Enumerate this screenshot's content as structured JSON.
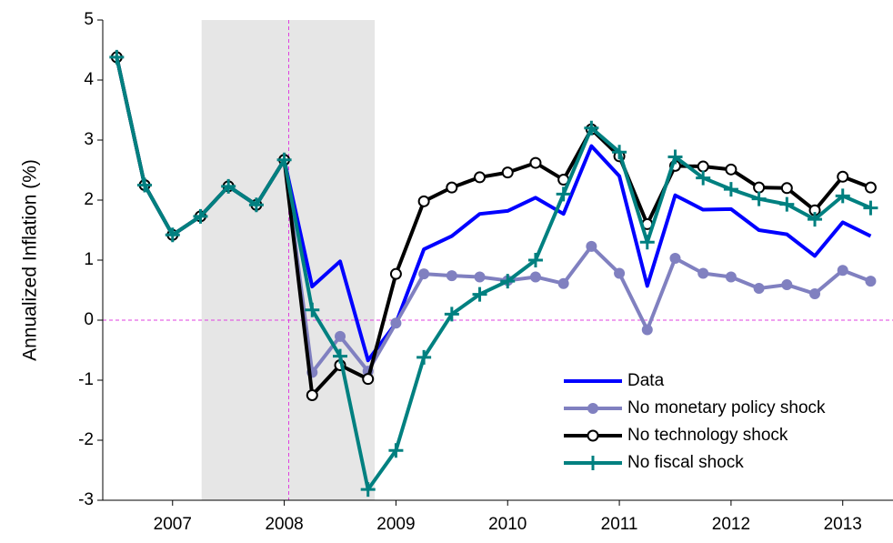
{
  "chart_data": {
    "type": "line",
    "y_label": "Annualized Inflation (%)",
    "x": [
      2006.5,
      2006.75,
      2007,
      2007.25,
      2007.5,
      2007.75,
      2008,
      2008.25,
      2008.5,
      2008.75,
      2009,
      2009.25,
      2009.5,
      2009.75,
      2010,
      2010.25,
      2010.5,
      2010.75,
      2011,
      2011.25,
      2011.5,
      2011.75,
      2012,
      2012.25,
      2012.5,
      2012.75,
      2013,
      2013.25
    ],
    "xlim": [
      2006.375,
      2013.45
    ],
    "xticks": [
      2007,
      2008,
      2009,
      2010,
      2011,
      2012,
      2013
    ],
    "ylim": [
      -3,
      5
    ],
    "yticks": [
      -3,
      -2,
      -1,
      0,
      1,
      2,
      3,
      4,
      5
    ],
    "shade": [
      2007.26,
      2008.81
    ],
    "vline": 2008.04,
    "hline": 0,
    "legend": "lower-right",
    "series": [
      {
        "name": "Data",
        "color": "#0000ff",
        "marker": "none",
        "values": [
          4.38,
          2.25,
          1.42,
          1.73,
          2.23,
          1.92,
          2.67,
          0.56,
          0.98,
          -0.67,
          -0.05,
          1.18,
          1.4,
          1.77,
          1.82,
          2.04,
          1.77,
          2.9,
          2.4,
          0.57,
          2.08,
          1.84,
          1.85,
          1.5,
          1.43,
          1.07,
          1.63,
          1.4
        ]
      },
      {
        "name": "No monetary policy shock",
        "color": "#8080c0",
        "marker": "dot",
        "values": [
          4.38,
          2.25,
          1.42,
          1.73,
          2.23,
          1.92,
          2.67,
          -0.87,
          -0.27,
          -0.85,
          -0.05,
          0.77,
          0.74,
          0.72,
          0.66,
          0.72,
          0.61,
          1.23,
          0.78,
          -0.16,
          1.03,
          0.78,
          0.72,
          0.53,
          0.59,
          0.44,
          0.83,
          0.65
        ]
      },
      {
        "name": "No technology shock",
        "color": "#000000",
        "marker": "circle",
        "values": [
          4.38,
          2.25,
          1.42,
          1.73,
          2.23,
          1.92,
          2.67,
          -1.25,
          -0.75,
          -0.98,
          0.77,
          1.98,
          2.21,
          2.38,
          2.46,
          2.62,
          2.34,
          3.18,
          2.73,
          1.6,
          2.57,
          2.56,
          2.51,
          2.21,
          2.2,
          1.83,
          2.39,
          2.21
        ]
      },
      {
        "name": "No fiscal shock",
        "color": "#008080",
        "marker": "plus",
        "values": [
          4.38,
          2.25,
          1.42,
          1.73,
          2.23,
          1.92,
          2.67,
          0.17,
          -0.6,
          -2.82,
          -2.17,
          -0.62,
          0.1,
          0.43,
          0.65,
          1.0,
          2.1,
          3.2,
          2.8,
          1.3,
          2.72,
          2.37,
          2.18,
          2.02,
          1.93,
          1.68,
          2.07,
          1.87
        ]
      }
    ]
  }
}
